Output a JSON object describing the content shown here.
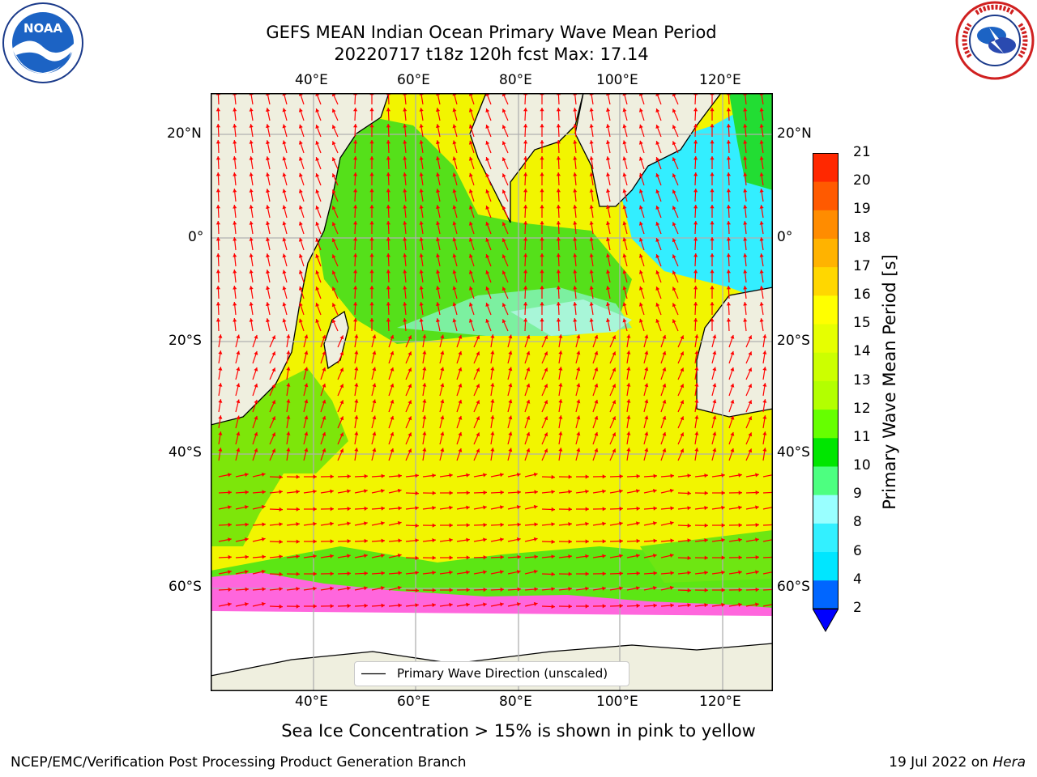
{
  "header": {
    "title_line1": "GEFS MEAN Indian Ocean Primary Wave Mean Period",
    "title_line2": "20220717 t18z 120h fcst   Max: 17.14"
  },
  "logos": {
    "left": {
      "name": "noaa-logo",
      "text": "NOAA",
      "ring_text": "NATIONAL OCEANIC AND ATMOSPHERIC ADMINISTRATION · U.S. DEPARTMENT OF COMMERCE"
    },
    "right": {
      "name": "nws-logo",
      "ring_text": "NATIONAL WEATHER SERVICE"
    }
  },
  "map": {
    "lon_ticks_top": [
      "40°E",
      "60°E",
      "80°E",
      "100°E",
      "120°E"
    ],
    "lon_ticks_bottom": [
      "40°E",
      "60°E",
      "80°E",
      "100°E",
      "120°E"
    ],
    "lat_ticks_left": [
      "20°N",
      "0°",
      "20°S",
      "40°S",
      "60°S"
    ],
    "lat_ticks_right": [
      "20°N",
      "0°",
      "20°S",
      "40°S",
      "60°S"
    ],
    "legend_label": "Primary Wave Direction (unscaled)",
    "arrow_color": "#ff0000",
    "land_color": "#efefdf"
  },
  "colorbar": {
    "title": "Primary Wave Mean Period [s]",
    "tick_labels": [
      "2",
      "4",
      "6",
      "8",
      "9",
      "10",
      "11",
      "12",
      "13",
      "14",
      "15",
      "16",
      "17",
      "18",
      "19",
      "20",
      "21"
    ],
    "colors": [
      "#0066ff",
      "#00e6ff",
      "#33f0ff",
      "#99ffff",
      "#4dff80",
      "#00e600",
      "#66ff00",
      "#b3ff00",
      "#ccff00",
      "#e6ff00",
      "#ffff00",
      "#ffd700",
      "#ffb300",
      "#ff8c00",
      "#ff5a00",
      "#ff2800"
    ],
    "under_color": "#0000ff"
  },
  "ice_note": "Sea Ice Concentration > 15% is shown in pink to yellow",
  "footer": {
    "left": "NCEP/EMC/Verification Post Processing Product Generation Branch",
    "right_date": "19 Jul 2022 on ",
    "right_host": "Hera"
  }
}
